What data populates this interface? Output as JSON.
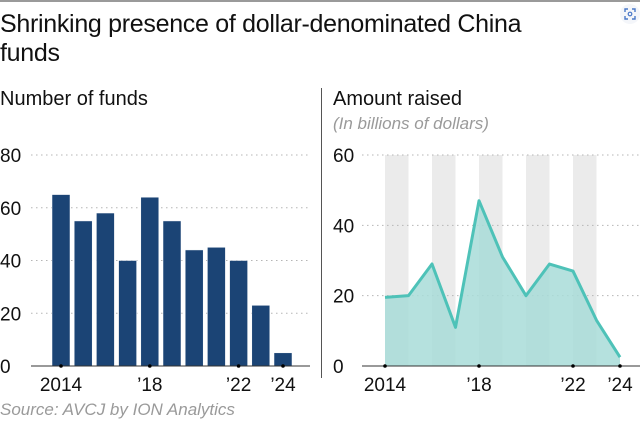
{
  "header": {
    "title": "Shrinking presence of dollar-denominated China funds",
    "lens_icon": "lens-scan-icon"
  },
  "colors": {
    "bar": "#1b4475",
    "area_line": "#4ec2b8",
    "area_fill": "#a8dcd8",
    "band": "#ebebeb"
  },
  "source": "Source: AVCJ by ION Analytics",
  "chart_data": [
    {
      "type": "bar",
      "title": "Number of funds",
      "subtitle": "",
      "xlabel": "",
      "ylabel": "",
      "categories": [
        "2014",
        "2015",
        "2016",
        "2017",
        "2018",
        "2019",
        "2020",
        "2021",
        "2022",
        "2023",
        "2024"
      ],
      "values": [
        65,
        55,
        58,
        40,
        64,
        55,
        44,
        45,
        40,
        23,
        5
      ],
      "ylim": [
        0,
        80
      ],
      "yticks": [
        "0",
        "20",
        "40",
        "60",
        "80"
      ],
      "xtick_labels": [
        {
          "year": "2014",
          "label": "2014"
        },
        {
          "year": "2018",
          "label": "’18"
        },
        {
          "year": "2022",
          "label": "’22"
        },
        {
          "year": "2024",
          "label": "’24"
        }
      ],
      "grid": true
    },
    {
      "type": "area",
      "title": "Amount raised",
      "subtitle": "(In billions of dollars)",
      "xlabel": "",
      "ylabel": "",
      "x": [
        "2014",
        "2015",
        "2016",
        "2017",
        "2018",
        "2019",
        "2020",
        "2021",
        "2022",
        "2023",
        "2024"
      ],
      "values": [
        19.5,
        20,
        29,
        11,
        47,
        31,
        20,
        29,
        27,
        13,
        2.5
      ],
      "ylim": [
        0,
        60
      ],
      "yticks": [
        "0",
        "20",
        "40",
        "60"
      ],
      "xtick_labels": [
        {
          "year": "2014",
          "label": "2014"
        },
        {
          "year": "2018",
          "label": "’18"
        },
        {
          "year": "2022",
          "label": "’22"
        },
        {
          "year": "2024",
          "label": "’24"
        }
      ],
      "grid": true
    }
  ]
}
